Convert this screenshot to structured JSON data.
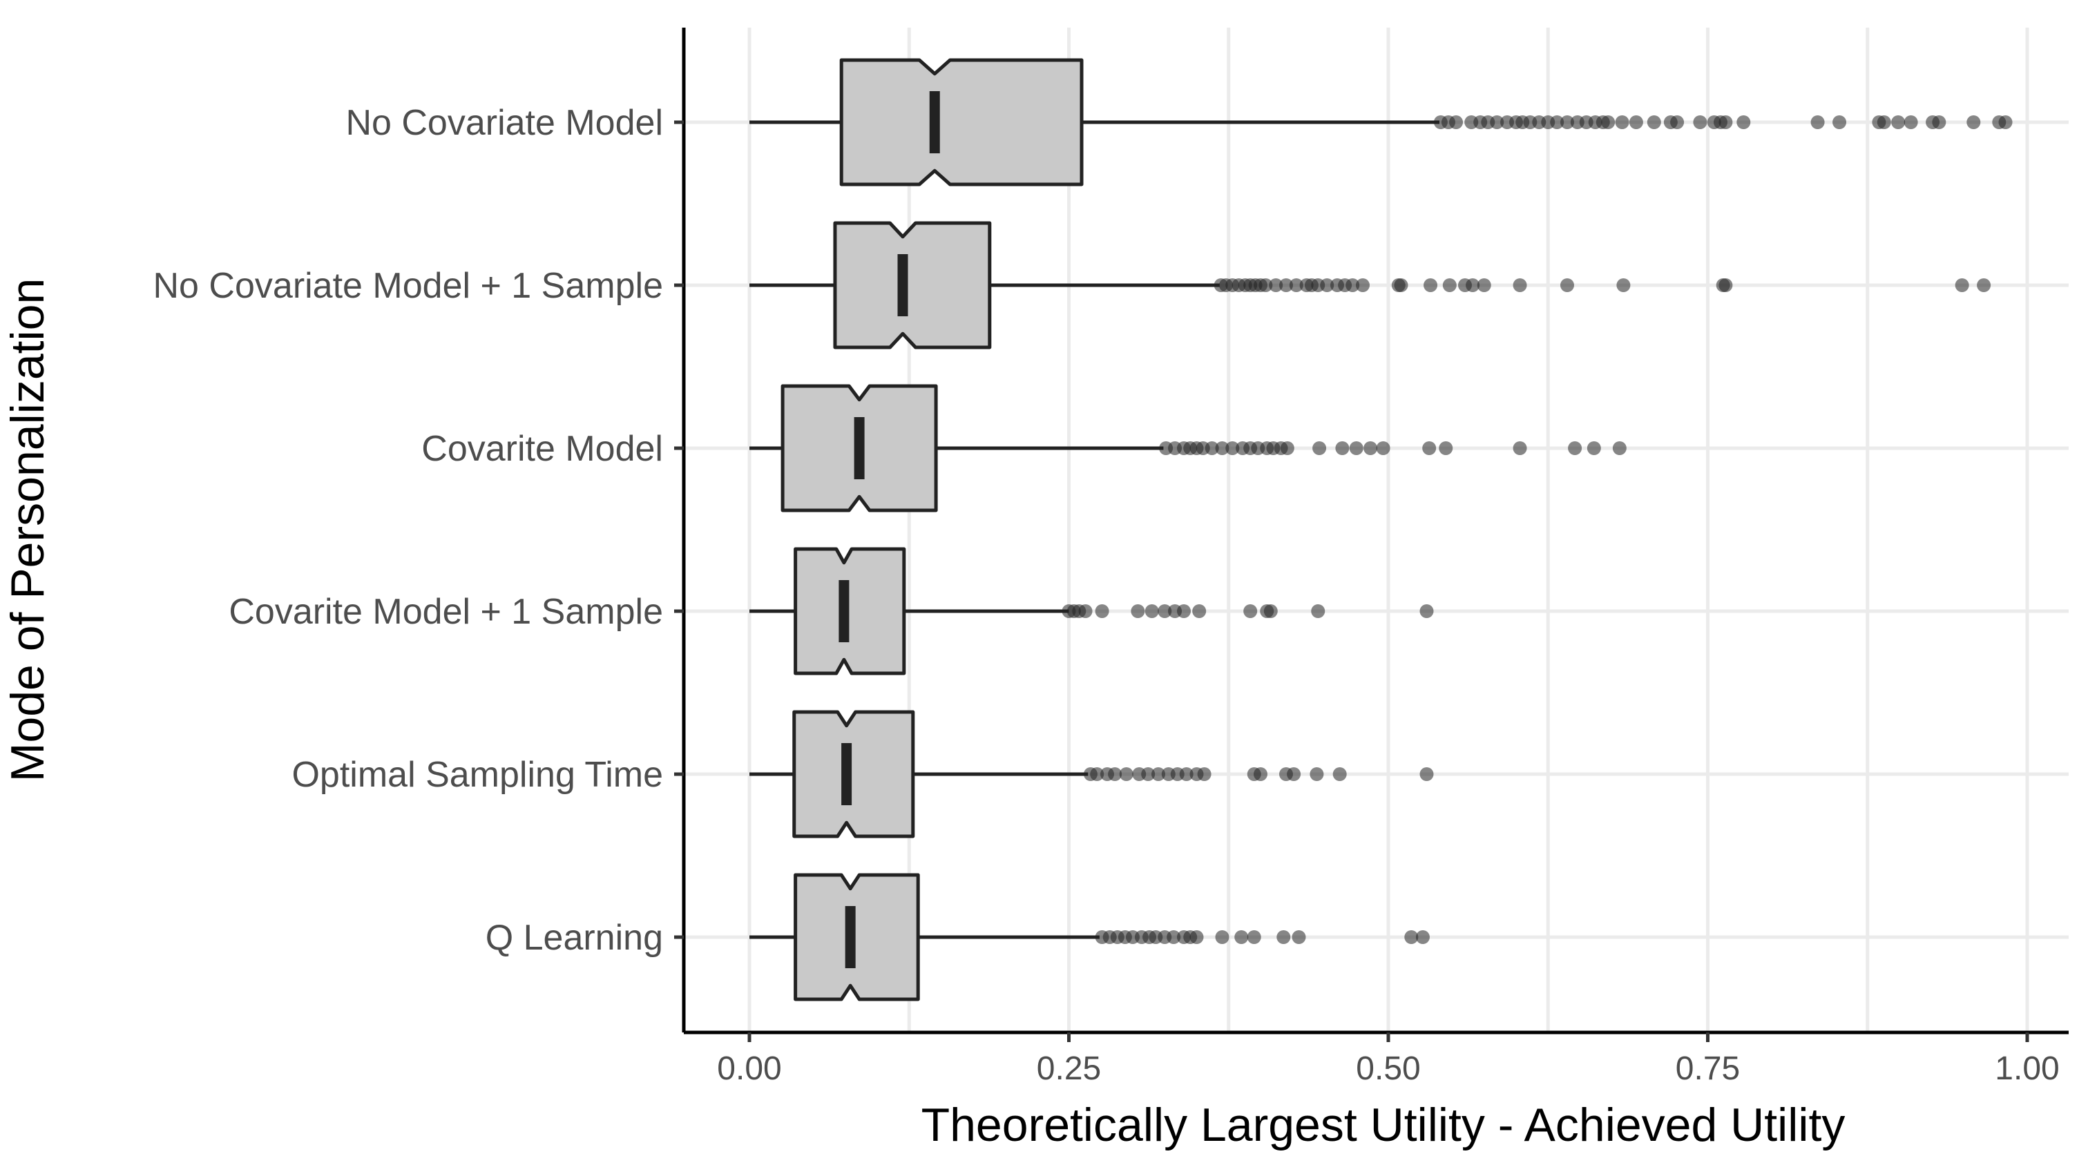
{
  "chart_data": {
    "type": "boxplot",
    "orientation": "horizontal",
    "title": "",
    "xlabel": "Theoretically Largest Utility - Achieved Utility",
    "ylabel": "Mode of Personalization",
    "xlim": [
      -0.1,
      1.02
    ],
    "xticks": [
      0,
      0.25,
      0.5,
      0.75,
      1.0
    ],
    "xtick_labels": [
      "0.00",
      "0.25",
      "0.50",
      "0.75",
      "1.00"
    ],
    "grid": true,
    "notched": true,
    "colors": {
      "box_fill": "#c9c9c9",
      "line": "#222222",
      "grid": "#ebebeb"
    },
    "categories": [
      "No Covariate Model",
      "No Covariate Model + 1 Sample",
      "Covarite Model",
      "Covarite Model + 1 Sample",
      "Optimal Sampling Time",
      "Q Learning"
    ],
    "boxes": [
      {
        "category": "No Covariate Model",
        "whisker_low": 0.0,
        "q1": 0.072,
        "median": 0.145,
        "q3": 0.26,
        "whisker_high": 0.54,
        "notch_low": 0.133,
        "notch_high": 0.157,
        "outliers": [
          0.541,
          0.547,
          0.553,
          0.565,
          0.572,
          0.578,
          0.585,
          0.593,
          0.6,
          0.605,
          0.611,
          0.618,
          0.625,
          0.632,
          0.64,
          0.648,
          0.655,
          0.662,
          0.668,
          0.672,
          0.683,
          0.694,
          0.708,
          0.721,
          0.726,
          0.744,
          0.755,
          0.76,
          0.764,
          0.778,
          0.836,
          0.853,
          0.884,
          0.888,
          0.899,
          0.909,
          0.926,
          0.931,
          0.958,
          0.978,
          0.983
        ]
      },
      {
        "category": "No Covariate Model + 1 Sample",
        "whisker_low": 0.0,
        "q1": 0.067,
        "median": 0.12,
        "q3": 0.188,
        "whisker_high": 0.368,
        "notch_low": 0.11,
        "notch_high": 0.13,
        "outliers": [
          0.369,
          0.373,
          0.378,
          0.383,
          0.388,
          0.392,
          0.396,
          0.4,
          0.404,
          0.412,
          0.42,
          0.428,
          0.436,
          0.44,
          0.445,
          0.452,
          0.46,
          0.466,
          0.472,
          0.48,
          0.508,
          0.51,
          0.533,
          0.548,
          0.56,
          0.566,
          0.575,
          0.603,
          0.64,
          0.684,
          0.762,
          0.764,
          0.949,
          0.966
        ]
      },
      {
        "category": "Covarite Model",
        "whisker_low": 0.0,
        "q1": 0.026,
        "median": 0.086,
        "q3": 0.146,
        "whisker_high": 0.324,
        "notch_low": 0.078,
        "notch_high": 0.094,
        "outliers": [
          0.326,
          0.333,
          0.34,
          0.345,
          0.35,
          0.355,
          0.362,
          0.37,
          0.378,
          0.386,
          0.392,
          0.398,
          0.405,
          0.41,
          0.416,
          0.421,
          0.446,
          0.464,
          0.475,
          0.486,
          0.496,
          0.532,
          0.545,
          0.603,
          0.646,
          0.661,
          0.681
        ]
      },
      {
        "category": "Covarite Model + 1 Sample",
        "whisker_low": 0.0,
        "q1": 0.036,
        "median": 0.074,
        "q3": 0.121,
        "whisker_high": 0.25,
        "notch_low": 0.068,
        "notch_high": 0.08,
        "outliers": [
          0.25,
          0.254,
          0.258,
          0.263,
          0.276,
          0.304,
          0.315,
          0.325,
          0.333,
          0.34,
          0.352,
          0.392,
          0.405,
          0.408,
          0.445,
          0.53
        ]
      },
      {
        "category": "Optimal Sampling Time",
        "whisker_low": 0.0,
        "q1": 0.035,
        "median": 0.076,
        "q3": 0.128,
        "whisker_high": 0.265,
        "notch_low": 0.069,
        "notch_high": 0.083,
        "outliers": [
          0.267,
          0.272,
          0.28,
          0.286,
          0.295,
          0.305,
          0.312,
          0.32,
          0.328,
          0.335,
          0.342,
          0.35,
          0.356,
          0.395,
          0.4,
          0.42,
          0.426,
          0.444,
          0.462,
          0.53
        ]
      },
      {
        "category": "Q Learning",
        "whisker_low": 0.0,
        "q1": 0.036,
        "median": 0.079,
        "q3": 0.132,
        "whisker_high": 0.274,
        "notch_low": 0.072,
        "notch_high": 0.086,
        "outliers": [
          0.276,
          0.282,
          0.288,
          0.294,
          0.3,
          0.307,
          0.313,
          0.318,
          0.325,
          0.332,
          0.34,
          0.345,
          0.35,
          0.37,
          0.385,
          0.395,
          0.418,
          0.43,
          0.518,
          0.527
        ]
      }
    ]
  }
}
